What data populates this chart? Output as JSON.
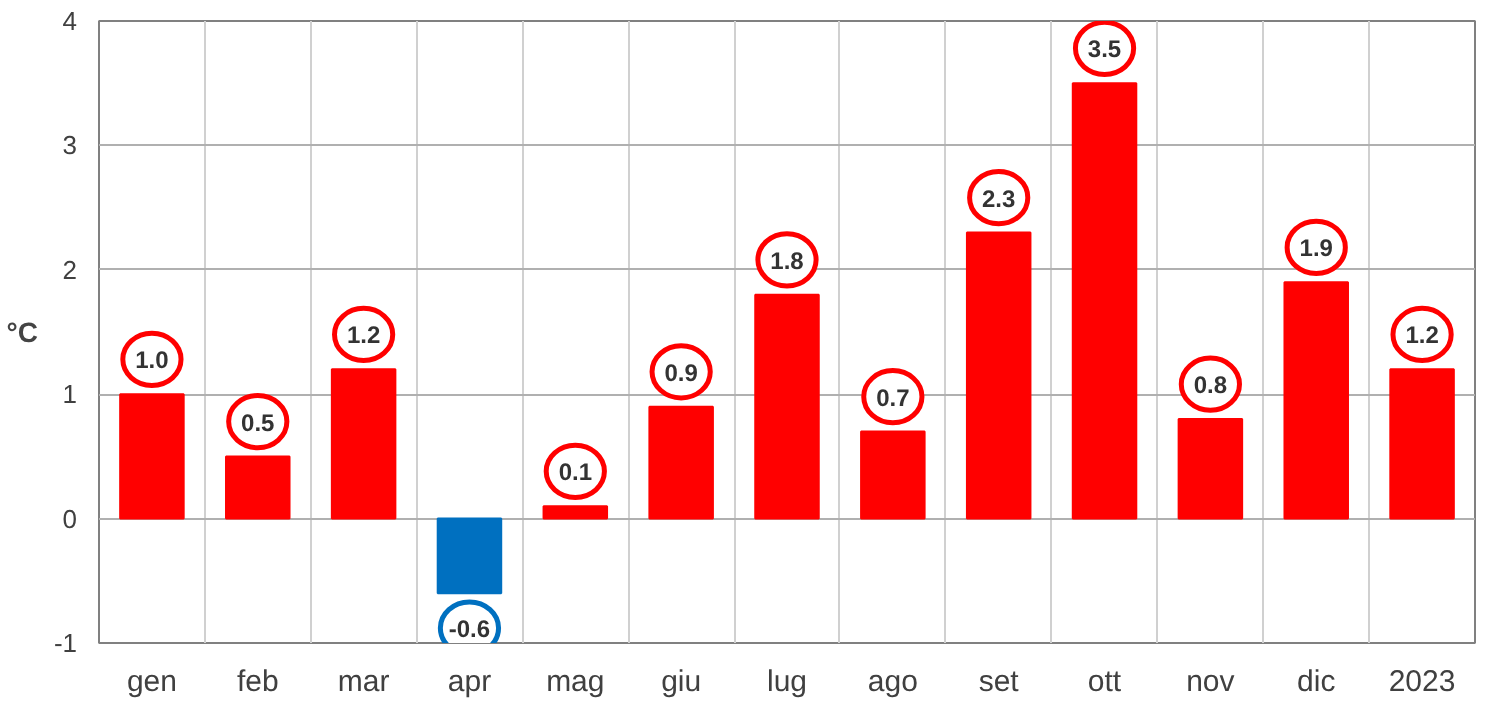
{
  "chart_data": {
    "type": "bar",
    "ylabel": "°C",
    "categories": [
      "gen",
      "feb",
      "mar",
      "apr",
      "mag",
      "giu",
      "lug",
      "ago",
      "set",
      "ott",
      "nov",
      "dic",
      "2023"
    ],
    "values": [
      1.0,
      0.5,
      1.2,
      -0.6,
      0.1,
      0.9,
      1.8,
      0.7,
      2.3,
      3.5,
      0.8,
      1.9,
      1.2
    ],
    "colors": [
      "#ff0000",
      "#ff0000",
      "#ff0000",
      "#0070c0",
      "#ff0000",
      "#ff0000",
      "#ff0000",
      "#ff0000",
      "#ff0000",
      "#ff0000",
      "#ff0000",
      "#ff0000",
      "#ff0000"
    ],
    "value_labels": [
      "1.0",
      "0.5",
      "1.2",
      "-0.6",
      "0.1",
      "0.9",
      "1.8",
      "0.7",
      "2.3",
      "3.5",
      "0.8",
      "1.9",
      "1.2"
    ],
    "ylim": [
      -1,
      4
    ],
    "yticks": [
      -1,
      0,
      1,
      2,
      3,
      4
    ],
    "grid": true
  }
}
